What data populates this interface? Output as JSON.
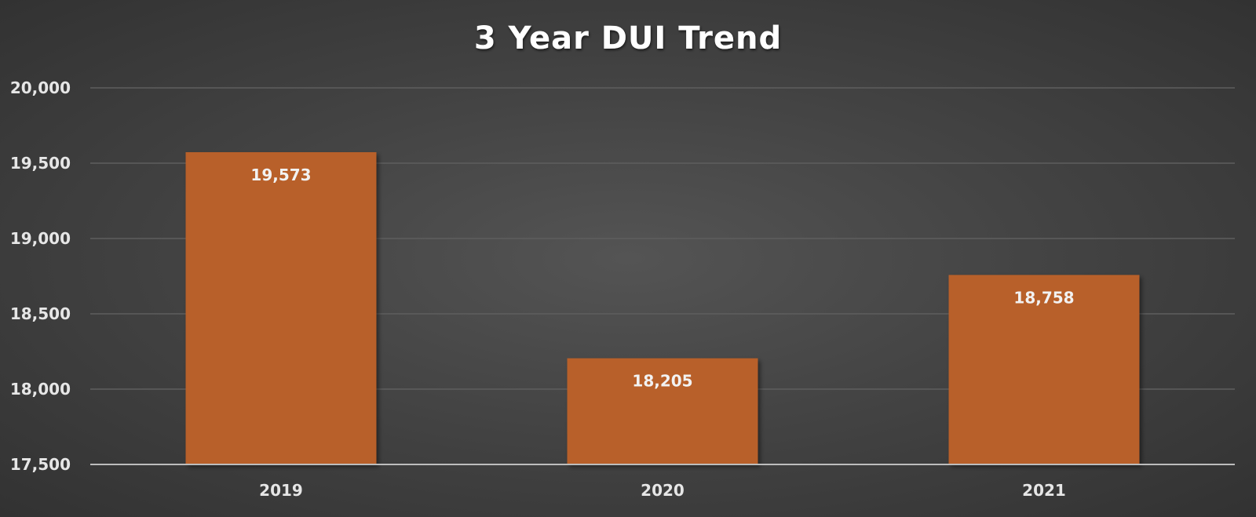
{
  "chart_data": {
    "type": "bar",
    "title": "3 Year DUI Trend",
    "categories": [
      "2019",
      "2020",
      "2021"
    ],
    "values": [
      19573,
      18205,
      18758
    ],
    "data_labels": [
      "19,573",
      "18,205",
      "18,758"
    ],
    "ylim": [
      17500,
      20000
    ],
    "yticks": [
      17500,
      18000,
      18500,
      19000,
      19500,
      20000
    ],
    "ytick_labels": [
      "17,500",
      "18,000",
      "18,500",
      "19,000",
      "19,500",
      "20,000"
    ],
    "xlabel": "",
    "ylabel": "",
    "grid": true,
    "legend": "none"
  },
  "colors": {
    "bar": "#b8602b",
    "background": "#444444"
  }
}
